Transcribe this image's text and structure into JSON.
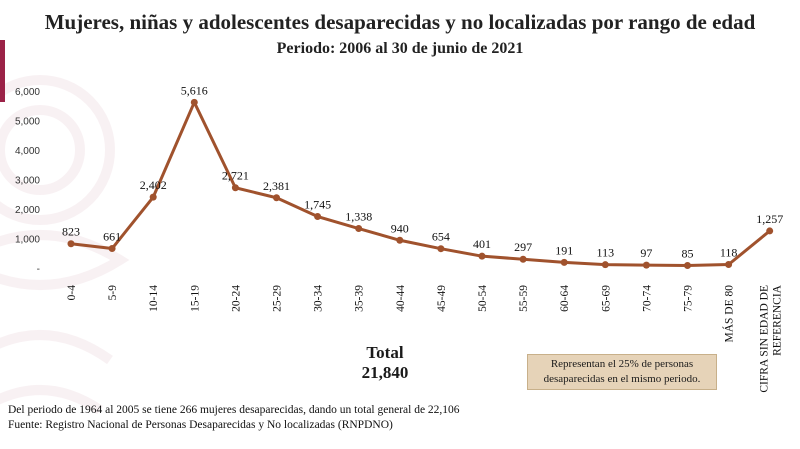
{
  "title": "Mujeres, niñas y adolescentes desaparecidas y no localizadas por rango de edad",
  "subtitle": "Periodo: 2006 al 30 de junio de 2021",
  "colors": {
    "line": "#a0522d",
    "accent": "#9b2247",
    "note_bg": "#e6d3b8"
  },
  "chart_data": {
    "type": "line",
    "title": "Mujeres, niñas y adolescentes desaparecidas y no localizadas por rango de edad",
    "subtitle": "Periodo: 2006 al 30 de junio de 2021",
    "categories": [
      "0-4",
      "5-9",
      "10-14",
      "15-19",
      "20-24",
      "25-29",
      "30-34",
      "35-39",
      "40-44",
      "45-49",
      "50-54",
      "55-59",
      "60-64",
      "65-69",
      "70-74",
      "75-79",
      "MÁS DE 80",
      "CIFRA SIN EDAD DE REFERENCIA"
    ],
    "values": [
      823,
      661,
      2402,
      5616,
      2721,
      2381,
      1745,
      1338,
      940,
      654,
      401,
      297,
      191,
      113,
      97,
      85,
      118,
      1257
    ],
    "data_labels": [
      "823",
      "661",
      "2,402",
      "5,616",
      "2,721",
      "2,381",
      "1,745",
      "1,338",
      "940",
      "654",
      "401",
      "297",
      "191",
      "113",
      "97",
      "85",
      "118",
      "1,257"
    ],
    "y_ticks": [
      "-",
      "1,000",
      "2,000",
      "3,000",
      "4,000",
      "5,000",
      "6,000"
    ],
    "ylim": [
      0,
      6000
    ],
    "grid": false,
    "legend": "none"
  },
  "total": {
    "label": "Total",
    "value": "21,840"
  },
  "note": "Representan el 25% de personas desaparecidas en el mismo periodo.",
  "footnotes": [
    "Del periodo de 1964 al 2005 se tiene 266 mujeres desaparecidas, dando un total general de 22,106",
    "Fuente: Registro Nacional de Personas Desaparecidas y No localizadas (RNPDNO)"
  ]
}
